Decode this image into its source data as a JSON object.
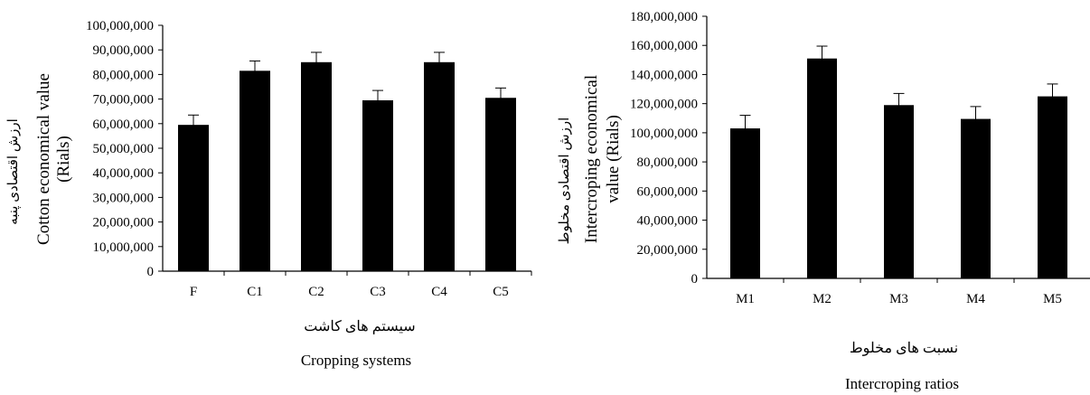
{
  "colors": {
    "bar": "#000000",
    "axis": "#000000",
    "background": "#ffffff"
  },
  "chart_data": [
    {
      "type": "bar",
      "categories": [
        "F",
        "C1",
        "C2",
        "C3",
        "C4",
        "C5"
      ],
      "values": [
        59500000,
        81500000,
        85000000,
        69500000,
        85000000,
        70500000
      ],
      "errors": [
        4000000,
        4000000,
        4000000,
        4000000,
        4000000,
        4000000
      ],
      "ylim": [
        0,
        100000000
      ],
      "yticks": [
        0,
        10000000,
        20000000,
        30000000,
        40000000,
        50000000,
        60000000,
        70000000,
        80000000,
        90000000,
        100000000
      ],
      "ytick_labels": [
        "0",
        "10,000,000",
        "20,000,000",
        "30,000,000",
        "40,000,000",
        "50,000,000",
        "60,000,000",
        "70,000,000",
        "80,000,000",
        "90,000,000",
        "100,000,000"
      ],
      "ylabel_fa": "ارزش اقتصادی پنبه",
      "ylabel_en_1": "Cotton economical value",
      "ylabel_en_2": "(Rials)",
      "xlabel_fa": "سیستم های کاشت",
      "xlabel_en": "Cropping systems",
      "grid": false
    },
    {
      "type": "bar",
      "categories": [
        "M1",
        "M2",
        "M3",
        "M4",
        "M5"
      ],
      "values": [
        103000000,
        151000000,
        119000000,
        109500000,
        125000000
      ],
      "errors": [
        9000000,
        8500000,
        8000000,
        8500000,
        8500000
      ],
      "ylim": [
        0,
        180000000
      ],
      "yticks": [
        0,
        20000000,
        40000000,
        60000000,
        80000000,
        100000000,
        120000000,
        140000000,
        160000000,
        180000000
      ],
      "ytick_labels": [
        "0",
        "20,000,000",
        "40,000,000",
        "60,000,000",
        "80,000,000",
        "100,000,000",
        "120,000,000",
        "140,000,000",
        "160,000,000",
        "180,000,000"
      ],
      "ylabel_fa": "ارزش اقتصادی مخلوط",
      "ylabel_en_1": "Intercroping economical",
      "ylabel_en_2": "value (Rials)",
      "xlabel_fa": "نسبت های مخلوط",
      "xlabel_en": "Intercroping ratios",
      "grid": false
    }
  ]
}
